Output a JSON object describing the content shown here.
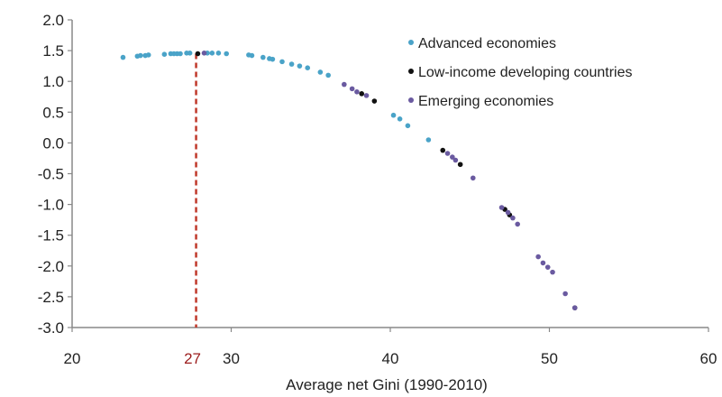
{
  "chart_data": {
    "type": "scatter",
    "xlabel": "Average net Gini (1990-2010)",
    "ylabel": "",
    "xlim": [
      20,
      60
    ],
    "ylim": [
      -3.0,
      2.0
    ],
    "x_ticks": [
      "20",
      "30",
      "40",
      "50",
      "60"
    ],
    "y_ticks": [
      "2.0",
      "1.5",
      "1.0",
      "0.5",
      "0.0",
      "-0.5",
      "-1.0",
      "-1.5",
      "-2.0",
      "-2.5",
      "-3.0"
    ],
    "grid": false,
    "legend_position": "top-right",
    "annotation": {
      "label": "27",
      "x": 27,
      "y_top": 1.45,
      "style": "dashed",
      "color": "#c0392b"
    },
    "series": [
      {
        "name": "Advanced economies",
        "color": "#4aa3c8",
        "points": [
          [
            23.2,
            1.39
          ],
          [
            24.1,
            1.41
          ],
          [
            24.3,
            1.42
          ],
          [
            24.6,
            1.42
          ],
          [
            24.8,
            1.43
          ],
          [
            25.8,
            1.44
          ],
          [
            26.2,
            1.45
          ],
          [
            26.4,
            1.45
          ],
          [
            26.6,
            1.45
          ],
          [
            26.8,
            1.45
          ],
          [
            27.2,
            1.46
          ],
          [
            27.4,
            1.46
          ],
          [
            28.5,
            1.46
          ],
          [
            28.8,
            1.46
          ],
          [
            29.2,
            1.46
          ],
          [
            29.7,
            1.45
          ],
          [
            31.1,
            1.43
          ],
          [
            31.3,
            1.42
          ],
          [
            32.0,
            1.39
          ],
          [
            32.4,
            1.37
          ],
          [
            32.6,
            1.36
          ],
          [
            33.2,
            1.32
          ],
          [
            33.8,
            1.28
          ],
          [
            34.3,
            1.25
          ],
          [
            34.8,
            1.22
          ],
          [
            35.6,
            1.15
          ],
          [
            36.1,
            1.1
          ],
          [
            40.2,
            0.45
          ],
          [
            40.6,
            0.39
          ],
          [
            41.1,
            0.28
          ],
          [
            42.4,
            0.05
          ]
        ]
      },
      {
        "name": "Low-income developing countries",
        "color": "#111111",
        "points": [
          [
            27.9,
            1.45
          ],
          [
            38.2,
            0.8
          ],
          [
            39.0,
            0.68
          ],
          [
            43.3,
            -0.12
          ],
          [
            44.4,
            -0.35
          ],
          [
            47.2,
            -1.08
          ],
          [
            47.5,
            -1.17
          ],
          [
            51.6,
            -2.68
          ]
        ]
      },
      {
        "name": "Emerging economies",
        "color": "#6a5aa0",
        "points": [
          [
            28.3,
            1.46
          ],
          [
            37.1,
            0.95
          ],
          [
            37.6,
            0.88
          ],
          [
            37.9,
            0.83
          ],
          [
            38.5,
            0.77
          ],
          [
            43.6,
            -0.17
          ],
          [
            43.9,
            -0.23
          ],
          [
            44.1,
            -0.28
          ],
          [
            45.2,
            -0.57
          ],
          [
            47.0,
            -1.05
          ],
          [
            47.4,
            -1.13
          ],
          [
            47.7,
            -1.22
          ],
          [
            48.0,
            -1.32
          ],
          [
            49.3,
            -1.85
          ],
          [
            49.6,
            -1.95
          ],
          [
            49.9,
            -2.02
          ],
          [
            50.2,
            -2.1
          ],
          [
            51.0,
            -2.45
          ],
          [
            51.6,
            -2.68
          ]
        ]
      }
    ]
  }
}
